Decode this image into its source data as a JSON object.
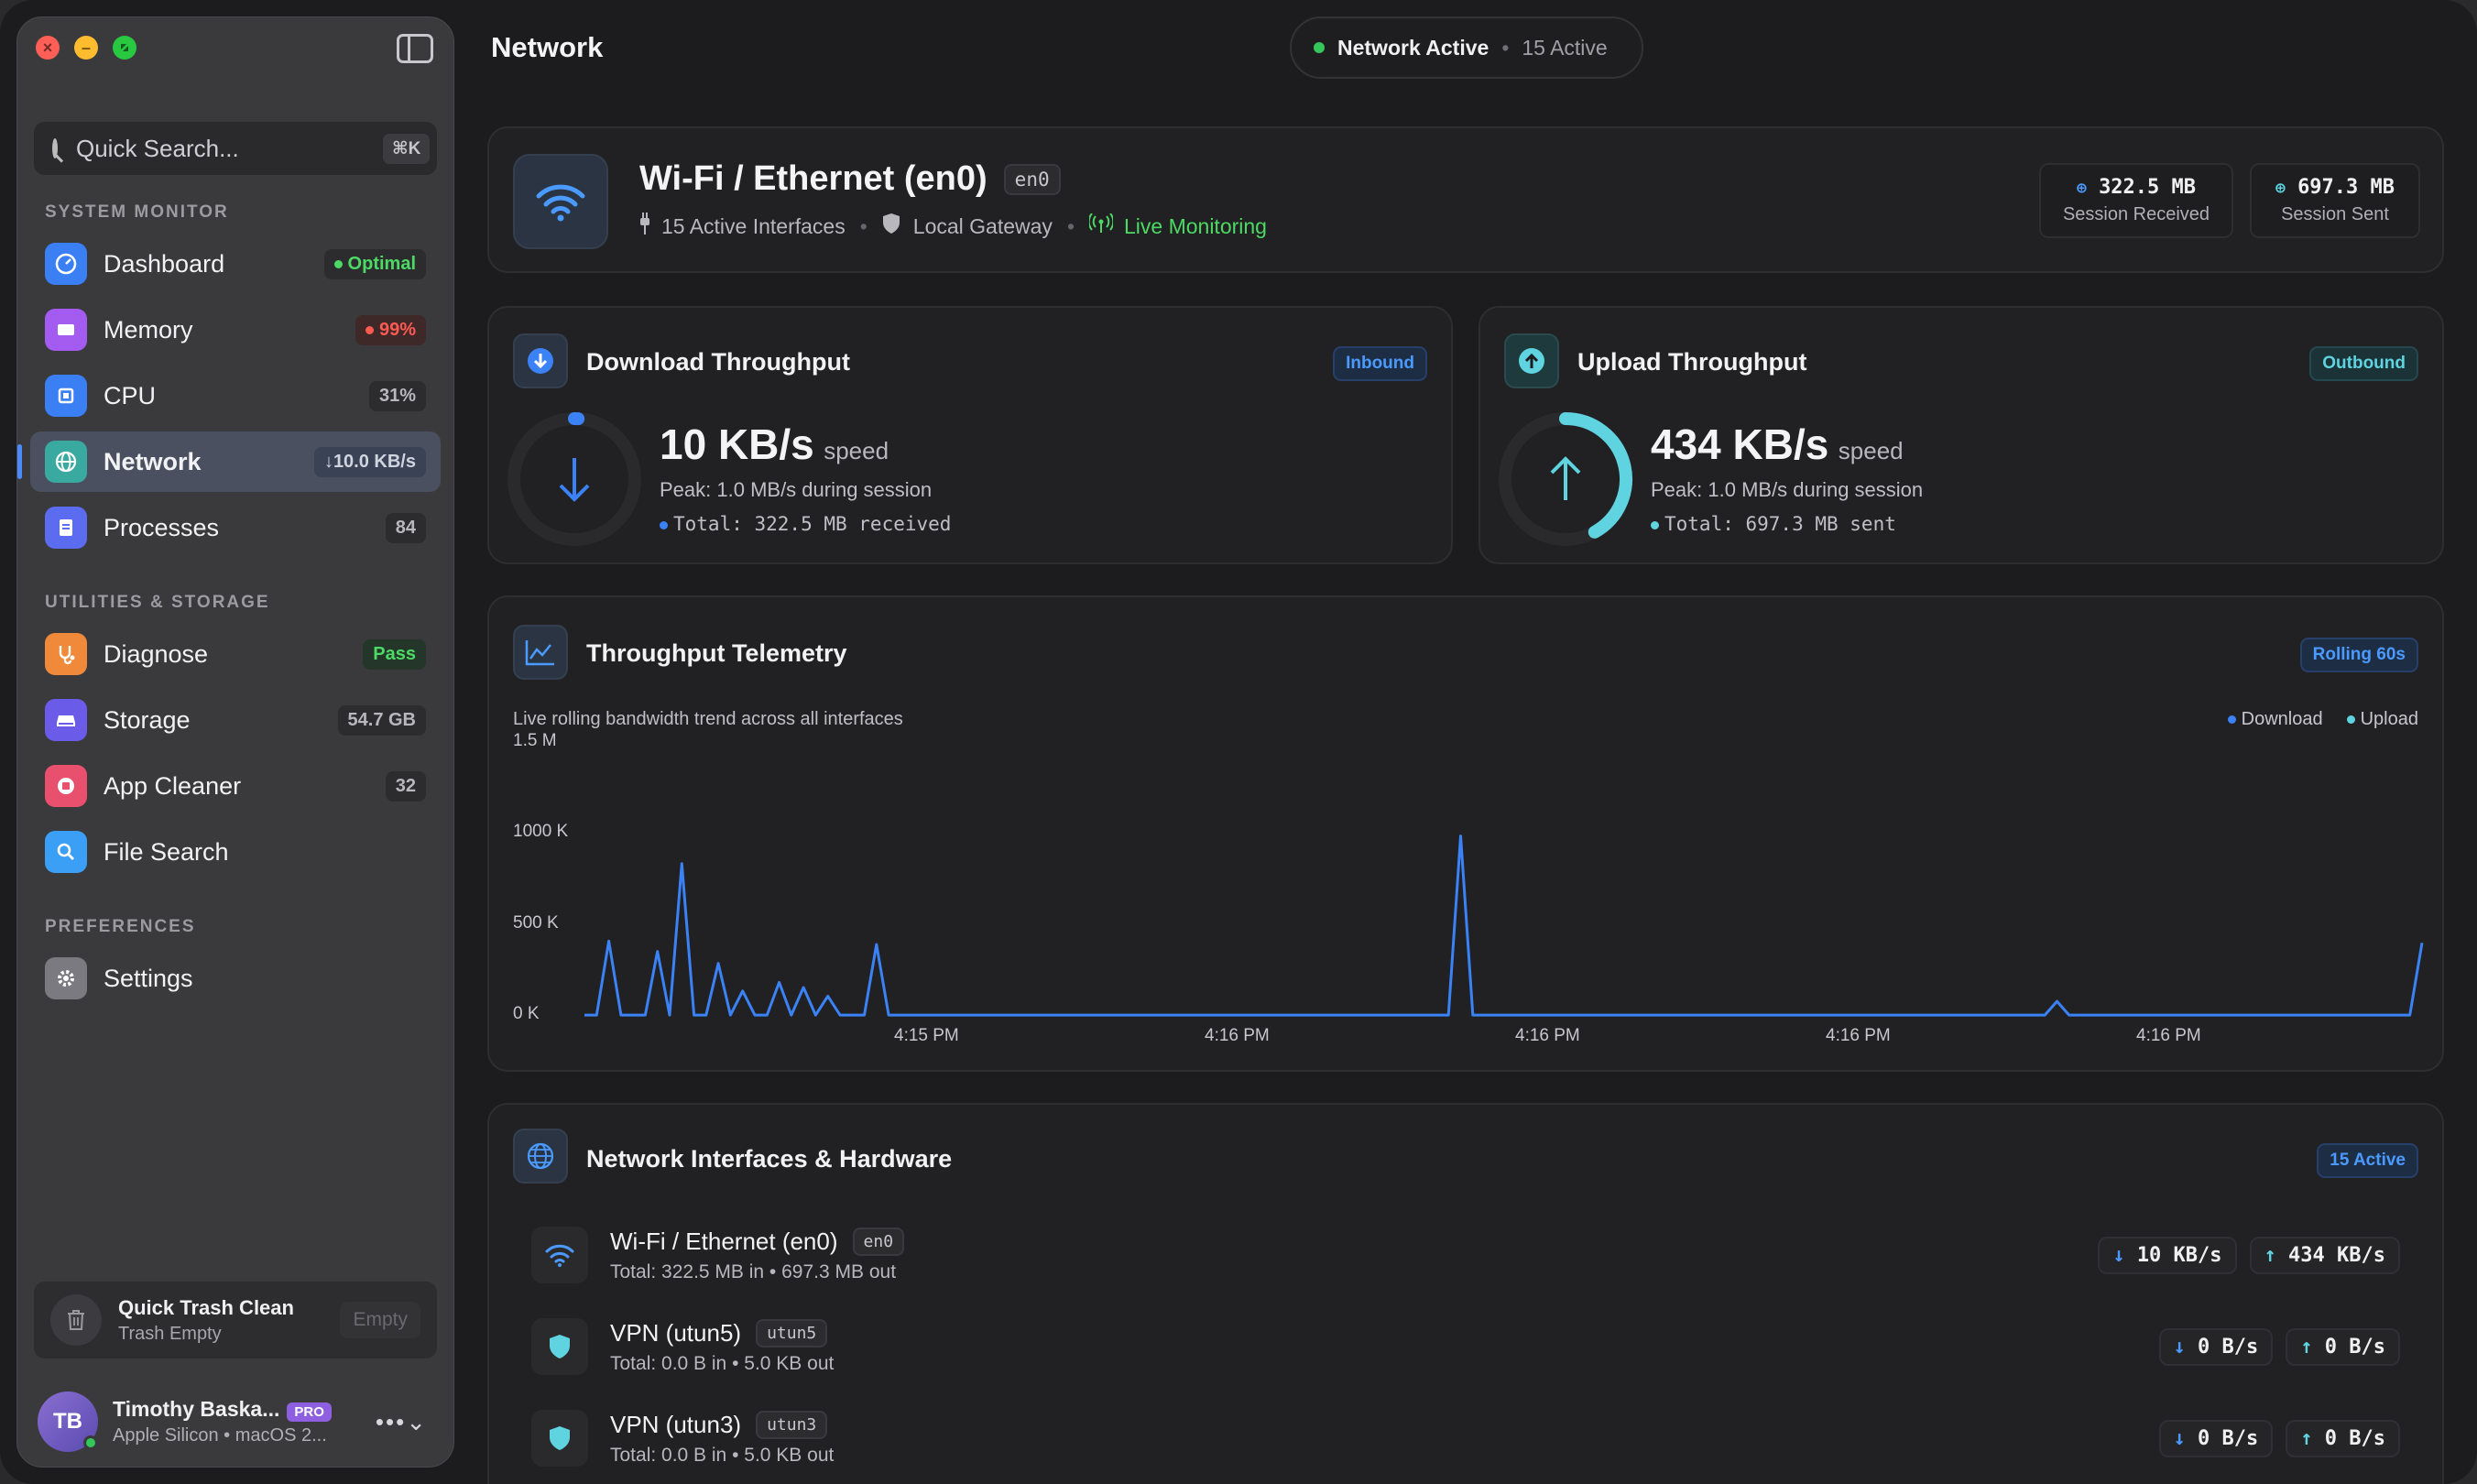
{
  "sidebar": {
    "search_placeholder": "Quick Search...",
    "search_shortcut": "⌘K",
    "sections": {
      "system": "SYSTEM MONITOR",
      "utilities": "UTILITIES & STORAGE",
      "preferences": "PREFERENCES"
    },
    "items": [
      {
        "label": "Dashboard",
        "badge": "Optimal",
        "color": "#3b7ff5",
        "icon": "gauge-icon"
      },
      {
        "label": "Memory",
        "badge": "99%",
        "color": "#a35bf0",
        "icon": "memory-chip-icon"
      },
      {
        "label": "CPU",
        "badge": "31%",
        "color": "#3b7ff5",
        "icon": "cpu-icon"
      },
      {
        "label": "Network",
        "badge": "↓10.0 KB/s",
        "color": "#3aa9a0",
        "icon": "globe-icon"
      },
      {
        "label": "Processes",
        "badge": "84",
        "color": "#5b6cf0",
        "icon": "document-icon"
      },
      {
        "label": "Diagnose",
        "badge": "Pass",
        "color": "#f08a3a",
        "icon": "stethoscope-icon"
      },
      {
        "label": "Storage",
        "badge": "54.7 GB",
        "color": "#6a5be8",
        "icon": "drive-icon"
      },
      {
        "label": "App Cleaner",
        "badge": "32",
        "color": "#e8506e",
        "icon": "app-cleaner-icon"
      },
      {
        "label": "File Search",
        "badge": "",
        "color": "#3b9ff5",
        "icon": "search-icon"
      },
      {
        "label": "Settings",
        "badge": "",
        "color": "#7a7a80",
        "icon": "gear-icon"
      }
    ],
    "trash": {
      "title": "Quick Trash Clean",
      "subtitle": "Trash Empty",
      "button": "Empty"
    },
    "user": {
      "initials": "TB",
      "name": "Timothy Baska...",
      "plan": "PRO",
      "subtitle": "Apple Silicon • macOS 2..."
    }
  },
  "header": {
    "title": "Network",
    "status_main": "Network Active",
    "status_sub": "15 Active"
  },
  "interface": {
    "name": "Wi-Fi / Ethernet (en0)",
    "id": "en0",
    "active_interfaces": "15 Active Interfaces",
    "gateway": "Local Gateway",
    "live": "Live Monitoring",
    "session_received": "322.5 MB",
    "session_received_label": "Session Received",
    "session_sent": "697.3 MB",
    "session_sent_label": "Session Sent"
  },
  "download": {
    "title": "Download Throughput",
    "tag": "Inbound",
    "speed": "10 KB/s",
    "unit": "speed",
    "peak": "Peak: 1.0 MB/s during session",
    "total": "Total: 322.5 MB received",
    "gauge_fraction": 0.01
  },
  "upload": {
    "title": "Upload Throughput",
    "tag": "Outbound",
    "speed": "434 KB/s",
    "unit": "speed",
    "peak": "Peak: 1.0 MB/s during session",
    "total": "Total: 697.3 MB sent",
    "gauge_fraction": 0.42
  },
  "telemetry": {
    "title": "Throughput Telemetry",
    "tag": "Rolling 60s",
    "subtitle": "Live rolling bandwidth trend across all interfaces",
    "legend_download": "Download",
    "legend_upload": "Upload"
  },
  "chart_data": {
    "type": "line",
    "title": "",
    "ylim": [
      0,
      1500
    ],
    "y_ticks": [
      "1.5 M",
      "1000 K",
      "500 K",
      "0 K"
    ],
    "x_ticks": [
      "4:15 PM",
      "4:16 PM",
      "4:16 PM",
      "4:16 PM",
      "4:16 PM"
    ],
    "series": [
      {
        "name": "Download",
        "color": "#3b82f6",
        "values": [
          10,
          10,
          440,
          10,
          10,
          10,
          380,
          10,
          890,
          10,
          10,
          310,
          10,
          150,
          10,
          10,
          200,
          10,
          170,
          10,
          120,
          10,
          10,
          10,
          420,
          10,
          10,
          10,
          10,
          10,
          10,
          10,
          10,
          10,
          10,
          10,
          10,
          10,
          10,
          10,
          10,
          10,
          10,
          10,
          10,
          10,
          10,
          10,
          10,
          10,
          10,
          10,
          10,
          10,
          10,
          10,
          10,
          10,
          10,
          10,
          10,
          10,
          10,
          10,
          10,
          10,
          10,
          10,
          10,
          10,
          10,
          10,
          1050,
          10,
          10,
          10,
          10,
          10,
          10,
          10,
          10,
          10,
          10,
          10,
          10,
          10,
          10,
          10,
          10,
          10,
          10,
          10,
          10,
          10,
          10,
          10,
          10,
          10,
          10,
          10,
          10,
          10,
          10,
          10,
          10,
          10,
          10,
          10,
          10,
          10,
          10,
          10,
          10,
          10,
          10,
          10,
          10,
          10,
          10,
          10,
          10,
          90,
          10,
          10,
          10,
          10,
          10,
          10,
          10,
          10,
          10,
          10,
          10,
          10,
          10,
          10,
          10,
          10,
          10,
          10,
          10,
          10,
          10,
          10,
          10,
          10,
          10,
          10,
          10,
          10,
          10,
          430
        ]
      }
    ]
  },
  "interfaces": {
    "title": "Network Interfaces & Hardware",
    "tag": "15 Active",
    "rows": [
      {
        "name": "Wi-Fi / Ethernet (en0)",
        "id": "en0",
        "totals": "Total: 322.5 MB in • 697.3 MB out",
        "down": "10 KB/s",
        "up": "434 KB/s",
        "icon": "wifi-icon"
      },
      {
        "name": "VPN (utun5)",
        "id": "utun5",
        "totals": "Total: 0.0 B in • 5.0 KB out",
        "down": "0 B/s",
        "up": "0 B/s",
        "icon": "shield-icon"
      },
      {
        "name": "VPN (utun3)",
        "id": "utun3",
        "totals": "Total: 0.0 B in • 5.0 KB out",
        "down": "0 B/s",
        "up": "0 B/s",
        "icon": "shield-icon"
      }
    ]
  },
  "colors": {
    "accent": "#3b82f6",
    "upload": "#5fd3e0",
    "ok": "#34c759"
  }
}
